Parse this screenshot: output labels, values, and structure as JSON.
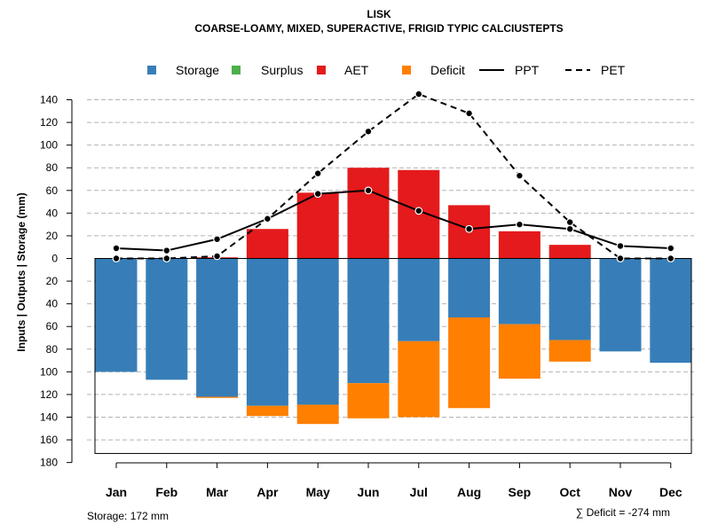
{
  "chart_data": {
    "type": "bar",
    "title": "LISK",
    "subtitle": "COARSE-LOAMY, MIXED, SUPERACTIVE, FRIGID TYPIC CALCIUSTEPTS",
    "ylabel": "Inputs | Outputs | Storage    (mm)",
    "ylim": [
      -180,
      150
    ],
    "yticks": [
      {
        "value": 140,
        "label": "140"
      },
      {
        "value": 120,
        "label": "120"
      },
      {
        "value": 100,
        "label": "100"
      },
      {
        "value": 80,
        "label": "80"
      },
      {
        "value": 60,
        "label": "60"
      },
      {
        "value": 40,
        "label": "40"
      },
      {
        "value": 20,
        "label": "20"
      },
      {
        "value": 0,
        "label": "0"
      },
      {
        "value": -20,
        "label": "20"
      },
      {
        "value": -40,
        "label": "40"
      },
      {
        "value": -60,
        "label": "60"
      },
      {
        "value": -80,
        "label": "80"
      },
      {
        "value": -100,
        "label": "100"
      },
      {
        "value": -120,
        "label": "120"
      },
      {
        "value": -140,
        "label": "140"
      },
      {
        "value": -160,
        "label": "160"
      },
      {
        "value": -180,
        "label": "180"
      }
    ],
    "gridlines": [
      140,
      120,
      100,
      80,
      60,
      40,
      20,
      -20,
      -40,
      -60,
      -80,
      -100,
      -120,
      -140,
      -160
    ],
    "categories": [
      "Jan",
      "Feb",
      "Mar",
      "Apr",
      "May",
      "Jun",
      "Jul",
      "Aug",
      "Sep",
      "Oct",
      "Nov",
      "Dec"
    ],
    "legend": [
      {
        "key": "storage",
        "label": "Storage",
        "kind": "box",
        "color": "#377EB8"
      },
      {
        "key": "surplus",
        "label": "Surplus",
        "kind": "box",
        "color": "#4DAF4A"
      },
      {
        "key": "aet",
        "label": "AET",
        "kind": "box",
        "color": "#E41A1C"
      },
      {
        "key": "deficit",
        "label": "Deficit",
        "kind": "box",
        "color": "#FF7F00"
      },
      {
        "key": "ppt",
        "label": "PPT",
        "kind": "solid",
        "color": "#000000"
      },
      {
        "key": "pet",
        "label": "PET",
        "kind": "dashed",
        "color": "#000000"
      }
    ],
    "series": [
      {
        "name": "AET",
        "key": "aet",
        "color": "#E41A1C",
        "values": [
          0,
          0,
          1,
          26,
          58,
          80,
          78,
          47,
          24,
          12,
          0,
          0
        ]
      },
      {
        "name": "Surplus",
        "key": "surplus",
        "color": "#4DAF4A",
        "values": [
          0,
          0,
          0,
          0,
          0,
          0,
          0,
          0,
          0,
          0,
          0,
          0
        ]
      },
      {
        "name": "Storage",
        "key": "storage",
        "color": "#377EB8",
        "values": [
          100,
          107,
          122,
          130,
          129,
          110,
          73,
          52,
          58,
          72,
          82,
          92
        ]
      },
      {
        "name": "Deficit",
        "key": "deficit",
        "color": "#FF7F00",
        "values": [
          0,
          0,
          1,
          9,
          17,
          31,
          67,
          80,
          48,
          19,
          0,
          0
        ]
      },
      {
        "name": "PPT",
        "key": "ppt",
        "color": "#000000",
        "values": [
          9,
          7,
          17,
          35,
          57,
          60,
          42,
          26,
          30,
          26,
          11,
          9
        ]
      },
      {
        "name": "PET",
        "key": "pet",
        "color": "#000000",
        "values": [
          0,
          0,
          2,
          35,
          75,
          112,
          145,
          128,
          73,
          32,
          0,
          0
        ]
      }
    ],
    "storage_capacity": 172,
    "storage_note": "Storage: 172 mm",
    "deficit_note": "∑ Deficit = -274 mm"
  }
}
